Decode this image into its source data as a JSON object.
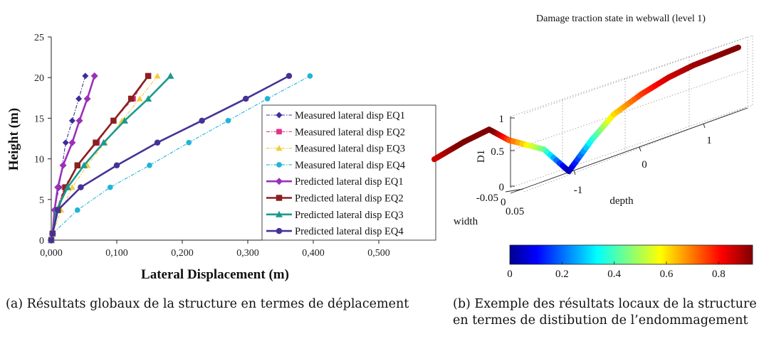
{
  "chart_data": [
    {
      "type": "line",
      "xlabel": "Lateral Displacement (m)",
      "ylabel": "Height (m)",
      "xlim": [
        0,
        0.5
      ],
      "ylim": [
        0,
        25
      ],
      "x_ticks": [
        "0,000",
        "0,100",
        "0,200",
        "0,300",
        "0,400",
        "0,500"
      ],
      "y_ticks": [
        "0",
        "5",
        "10",
        "15",
        "20",
        "25"
      ],
      "grid": false,
      "legend_position": "right",
      "series": [
        {
          "name": "Measured lateral disp EQ1",
          "color": "#3b2d9b",
          "marker": "diamond",
          "dash": "dashdot",
          "x": [
            0,
            0.002,
            0.005,
            0.012,
            0.022,
            0.032,
            0.042,
            0.052
          ],
          "y": [
            0,
            0.8,
            3.7,
            6.5,
            12,
            14.7,
            17.4,
            20.2
          ]
        },
        {
          "name": "Measured lateral disp EQ2",
          "color": "#e0338c",
          "marker": "square",
          "dash": "dashdot",
          "x": [
            0,
            0.002,
            0.008,
            0.02,
            0.04,
            0.07,
            0.095,
            0.125,
            0.148
          ],
          "y": [
            0,
            0.8,
            3.7,
            6.5,
            9.2,
            12,
            14.7,
            17.4,
            20.2
          ]
        },
        {
          "name": "Measured lateral disp EQ3",
          "color": "#f2cd3a",
          "marker": "triangle",
          "dash": "dashdot",
          "x": [
            0,
            0.002,
            0.015,
            0.032,
            0.055,
            0.082,
            0.108,
            0.135,
            0.162
          ],
          "y": [
            0,
            0.8,
            3.7,
            6.5,
            9.2,
            12,
            14.7,
            17.4,
            20.2
          ]
        },
        {
          "name": "Measured lateral disp EQ4",
          "color": "#20b4d8",
          "marker": "circle",
          "dash": "dashdot",
          "x": [
            0,
            0.002,
            0.04,
            0.09,
            0.15,
            0.21,
            0.27,
            0.33,
            0.395
          ],
          "y": [
            0,
            0.8,
            3.7,
            6.5,
            9.2,
            12,
            14.7,
            17.4,
            20.2
          ]
        },
        {
          "name": "Predicted lateral disp EQ1",
          "color": "#9b30b8",
          "marker": "diamond",
          "dash": "solid",
          "x": [
            0,
            0.002,
            0.005,
            0.01,
            0.018,
            0.032,
            0.043,
            0.055,
            0.066
          ],
          "y": [
            0,
            0.8,
            3.7,
            6.5,
            9.2,
            12,
            14.7,
            17.4,
            20.2
          ]
        },
        {
          "name": "Predicted lateral disp EQ2",
          "color": "#8b2020",
          "marker": "square",
          "dash": "solid",
          "x": [
            0,
            0.002,
            0.01,
            0.022,
            0.04,
            0.068,
            0.095,
            0.122,
            0.148
          ],
          "y": [
            0,
            0.8,
            3.7,
            6.5,
            9.2,
            12,
            14.7,
            17.4,
            20.2
          ]
        },
        {
          "name": "Predicted lateral disp EQ3",
          "color": "#1a9a90",
          "marker": "triangle",
          "dash": "solid",
          "x": [
            0,
            0.002,
            0.008,
            0.025,
            0.05,
            0.08,
            0.112,
            0.148,
            0.182
          ],
          "y": [
            0,
            0.8,
            3.7,
            6.5,
            9.2,
            12,
            14.7,
            17.4,
            20.2
          ]
        },
        {
          "name": "Predicted lateral disp EQ4",
          "color": "#463296",
          "marker": "circle",
          "dash": "solid",
          "x": [
            0,
            0.002,
            0.01,
            0.045,
            0.1,
            0.162,
            0.23,
            0.297,
            0.363
          ],
          "y": [
            0,
            0.8,
            3.7,
            6.5,
            9.2,
            12,
            14.7,
            17.4,
            20.2
          ]
        }
      ]
    },
    {
      "type": "line",
      "title": "Damage traction state in webwall (level 1)",
      "xlabel": "depth",
      "ylabel": "D1",
      "zlabel": "width",
      "d1_ticks": [
        "0",
        "0.5",
        "1"
      ],
      "depth_ticks": [
        "-1",
        "0",
        "1"
      ],
      "width_ticks": [
        "-0.05",
        "0",
        "0.05"
      ],
      "colormap": "jet",
      "colorbar_ticks": [
        "0",
        "0.2",
        "0.4",
        "0.6",
        "0.8"
      ],
      "colorbar_range": [
        0,
        0.93
      ],
      "grid": true,
      "series": [
        {
          "name": "",
          "depth": [
            -1.8,
            -1.5,
            -1.25,
            -1.05,
            -0.7,
            -0.45,
            -0.22,
            0,
            0.28,
            0.55,
            0.8,
            1.25
          ],
          "d1": [
            0.85,
            0.95,
            1.0,
            0.75,
            0.45,
            0.02,
            0.35,
            0.6,
            0.75,
            0.85,
            0.9,
            0.93
          ]
        }
      ]
    }
  ],
  "captions": {
    "a": "(a) Résultats globaux de la structure en termes de déplacement",
    "b": "(b) Exemple des résultats locaux de la structure en termes de distibution de l’endommagement"
  }
}
